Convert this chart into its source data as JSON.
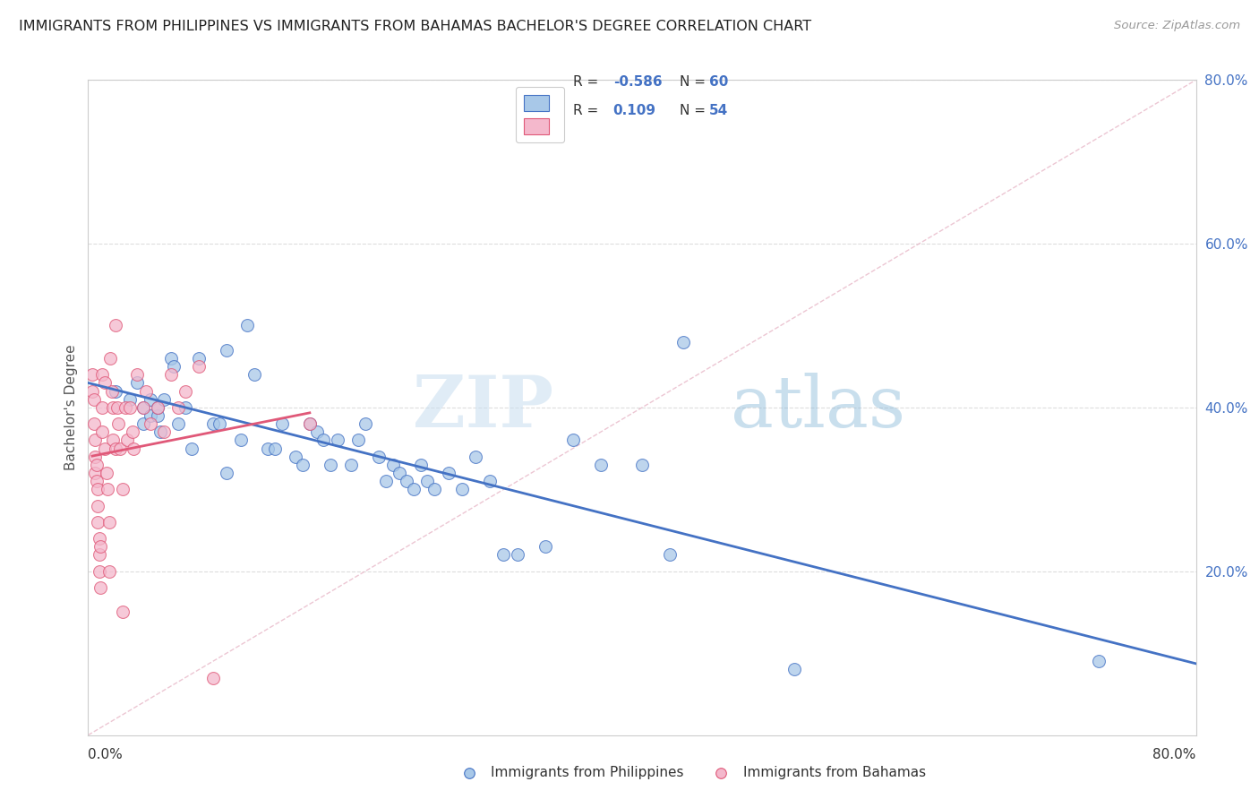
{
  "title": "IMMIGRANTS FROM PHILIPPINES VS IMMIGRANTS FROM BAHAMAS BACHELOR'S DEGREE CORRELATION CHART",
  "source": "Source: ZipAtlas.com",
  "ylabel": "Bachelor's Degree",
  "legend_labels": [
    "Immigrants from Philippines",
    "Immigrants from Bahamas"
  ],
  "legend_r": [
    -0.586,
    0.109
  ],
  "legend_n": [
    60,
    54
  ],
  "xlim": [
    0.0,
    0.8
  ],
  "ylim": [
    0.0,
    0.8
  ],
  "yticks_right": [
    0.2,
    0.4,
    0.6,
    0.8
  ],
  "color_blue": "#a8c8e8",
  "color_pink": "#f4b8cc",
  "color_blue_line": "#4472c4",
  "color_pink_line": "#e05878",
  "color_diag": "#e8b8c8",
  "blue_scatter_x": [
    0.02,
    0.03,
    0.035,
    0.04,
    0.04,
    0.045,
    0.045,
    0.05,
    0.05,
    0.052,
    0.055,
    0.06,
    0.062,
    0.065,
    0.07,
    0.075,
    0.08,
    0.09,
    0.095,
    0.1,
    0.1,
    0.11,
    0.115,
    0.12,
    0.13,
    0.135,
    0.14,
    0.15,
    0.155,
    0.16,
    0.165,
    0.17,
    0.175,
    0.18,
    0.19,
    0.195,
    0.2,
    0.21,
    0.215,
    0.22,
    0.225,
    0.23,
    0.235,
    0.24,
    0.245,
    0.25,
    0.26,
    0.27,
    0.28,
    0.29,
    0.3,
    0.31,
    0.33,
    0.35,
    0.37,
    0.4,
    0.42,
    0.43,
    0.51,
    0.73
  ],
  "blue_scatter_y": [
    0.42,
    0.41,
    0.43,
    0.4,
    0.38,
    0.39,
    0.41,
    0.39,
    0.4,
    0.37,
    0.41,
    0.46,
    0.45,
    0.38,
    0.4,
    0.35,
    0.46,
    0.38,
    0.38,
    0.32,
    0.47,
    0.36,
    0.5,
    0.44,
    0.35,
    0.35,
    0.38,
    0.34,
    0.33,
    0.38,
    0.37,
    0.36,
    0.33,
    0.36,
    0.33,
    0.36,
    0.38,
    0.34,
    0.31,
    0.33,
    0.32,
    0.31,
    0.3,
    0.33,
    0.31,
    0.3,
    0.32,
    0.3,
    0.34,
    0.31,
    0.22,
    0.22,
    0.23,
    0.36,
    0.33,
    0.33,
    0.22,
    0.48,
    0.08,
    0.09
  ],
  "pink_scatter_x": [
    0.003,
    0.003,
    0.004,
    0.004,
    0.005,
    0.005,
    0.005,
    0.006,
    0.006,
    0.007,
    0.007,
    0.007,
    0.008,
    0.008,
    0.008,
    0.009,
    0.009,
    0.01,
    0.01,
    0.01,
    0.012,
    0.012,
    0.013,
    0.014,
    0.015,
    0.015,
    0.016,
    0.017,
    0.018,
    0.018,
    0.02,
    0.02,
    0.021,
    0.022,
    0.023,
    0.025,
    0.025,
    0.027,
    0.028,
    0.03,
    0.032,
    0.033,
    0.035,
    0.04,
    0.042,
    0.045,
    0.05,
    0.055,
    0.06,
    0.065,
    0.07,
    0.08,
    0.09,
    0.16
  ],
  "pink_scatter_y": [
    0.44,
    0.42,
    0.41,
    0.38,
    0.36,
    0.34,
    0.32,
    0.33,
    0.31,
    0.3,
    0.28,
    0.26,
    0.24,
    0.22,
    0.2,
    0.23,
    0.18,
    0.44,
    0.4,
    0.37,
    0.43,
    0.35,
    0.32,
    0.3,
    0.26,
    0.2,
    0.46,
    0.42,
    0.4,
    0.36,
    0.5,
    0.35,
    0.4,
    0.38,
    0.35,
    0.3,
    0.15,
    0.4,
    0.36,
    0.4,
    0.37,
    0.35,
    0.44,
    0.4,
    0.42,
    0.38,
    0.4,
    0.37,
    0.44,
    0.4,
    0.42,
    0.45,
    0.07,
    0.38
  ],
  "watermark_zip": "ZIP",
  "watermark_atlas": "atlas",
  "background_color": "#ffffff"
}
